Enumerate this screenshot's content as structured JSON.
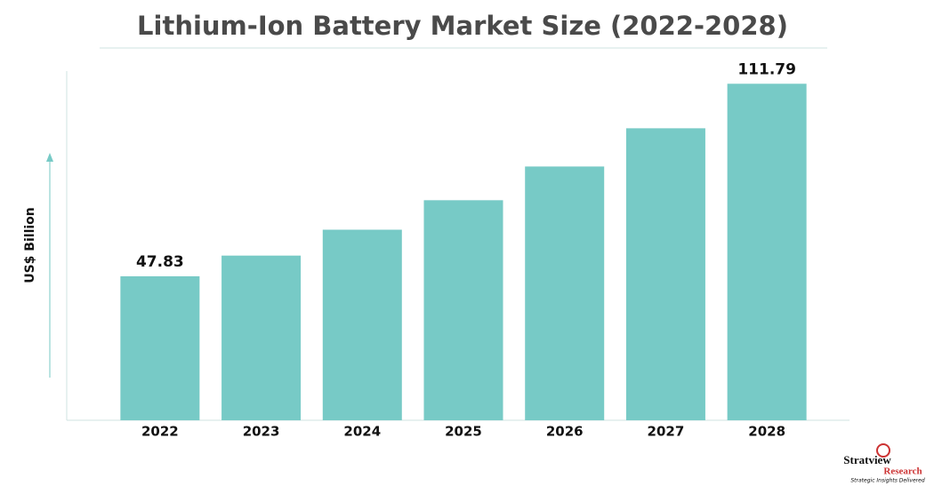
{
  "chart_data": {
    "type": "bar",
    "title": "Lithium-Ion Battery Market Size (2022-2028)",
    "y_label": "US$ Billion",
    "categories": [
      "2022",
      "2023",
      "2024",
      "2025",
      "2026",
      "2027",
      "2028"
    ],
    "values": [
      47.83,
      54.7,
      63.3,
      73.1,
      84.3,
      97.0,
      111.79
    ],
    "value_labels": [
      "47.83",
      null,
      null,
      null,
      null,
      null,
      "111.79"
    ],
    "color": "#77cac6",
    "ylim": [
      0,
      116
    ],
    "grid": false
  },
  "logo": {
    "name": "Stratview",
    "sub": "Research",
    "tagline": "Strategic Insights Delivered"
  }
}
